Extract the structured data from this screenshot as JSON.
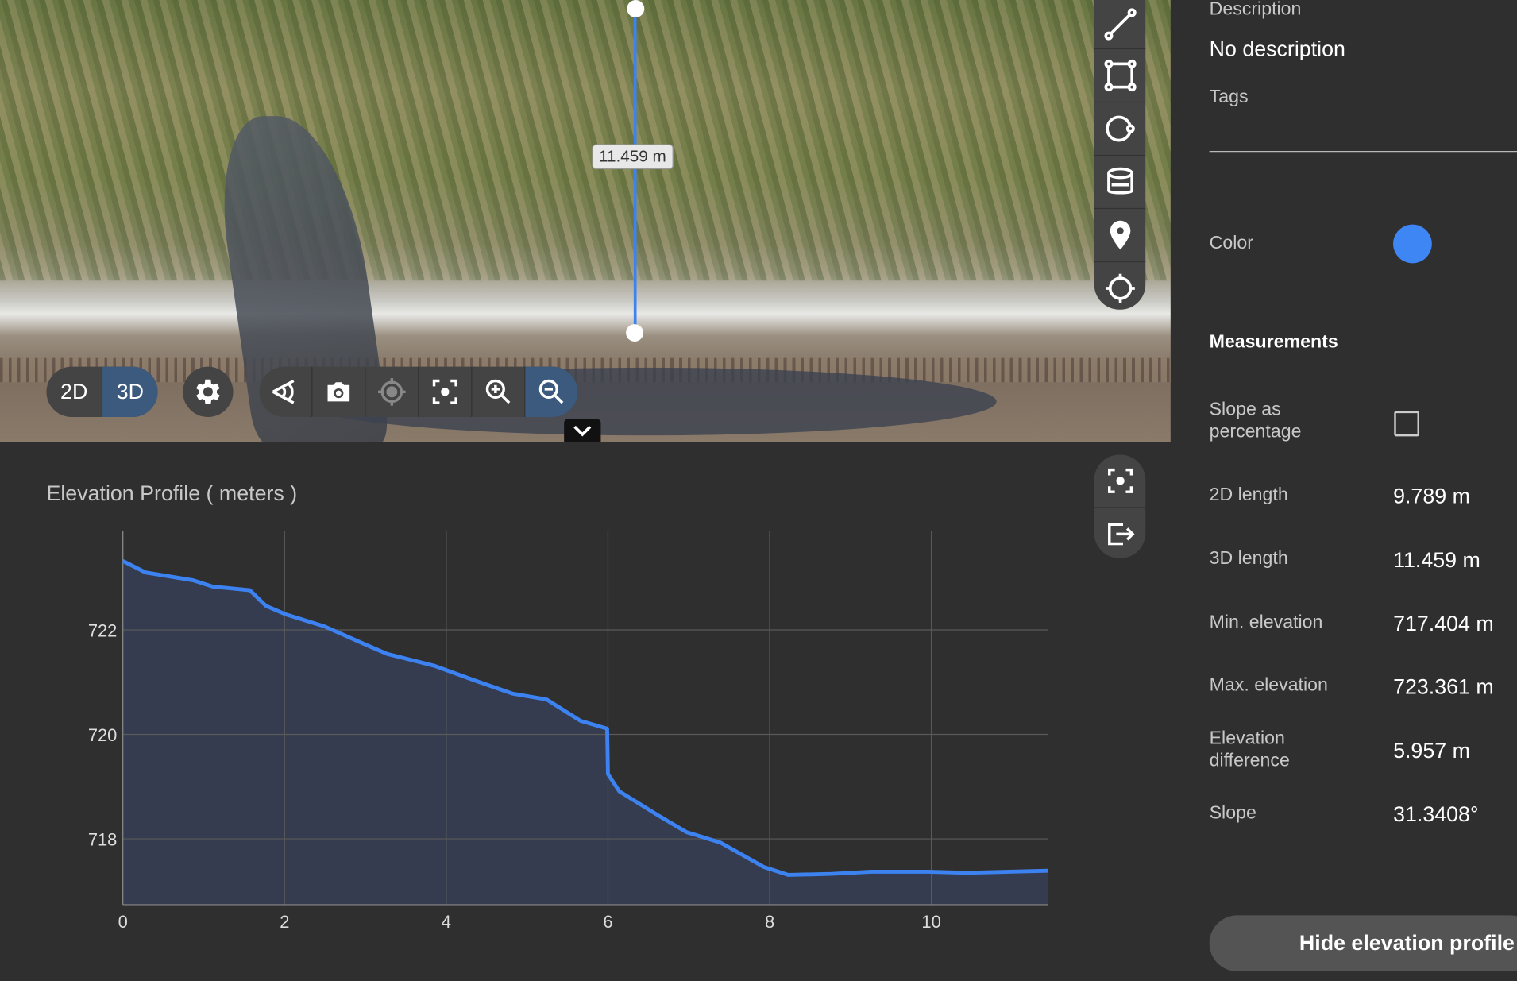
{
  "map": {
    "measure_label": "11.459 m",
    "view_toggle": [
      {
        "label": "2D",
        "active": false
      },
      {
        "label": "3D",
        "active": true
      }
    ],
    "toolbar_icons": [
      "eye-view-icon",
      "camera-icon",
      "locate-icon",
      "focus-icon",
      "zoom-in-icon",
      "zoom-out-icon"
    ],
    "tool_icons": [
      "line-icon",
      "polygon-icon",
      "circle-icon",
      "volume-icon",
      "marker-icon",
      "crosshair-icon"
    ],
    "line_color": "#3c82f0"
  },
  "panel": {
    "description_label": "Description",
    "description_value": "No description",
    "tags_label": "Tags",
    "color_label": "Color",
    "color_value": "#3f86f5",
    "measurements_heading": "Measurements",
    "slope_pct_label": "Slope as percentage",
    "slope_pct_checked": false,
    "rows": [
      {
        "label": "2D length",
        "value": "9.789 m"
      },
      {
        "label": "3D length",
        "value": "11.459 m"
      },
      {
        "label": "Min. elevation",
        "value": "717.404 m"
      },
      {
        "label": "Max. elevation",
        "value": "723.361 m"
      },
      {
        "label": "Elevation difference",
        "value": "5.957 m"
      },
      {
        "label": "Slope",
        "value": "31.3408°"
      }
    ],
    "hide_button": "Hide elevation profile"
  },
  "chart_data": {
    "type": "area",
    "title": "Elevation Profile ( meters )",
    "xlim": [
      0,
      11.44
    ],
    "ylim": [
      716.74,
      723.89
    ],
    "xticks": [
      0,
      2,
      4,
      6,
      8,
      10
    ],
    "yticks": [
      718,
      720,
      722
    ],
    "grid": true,
    "line_color": "#3c82f0",
    "fill_color": "#353c4f",
    "x": [
      0,
      0.28,
      0.87,
      1.11,
      1.57,
      1.77,
      2.01,
      2.49,
      3.03,
      3.27,
      3.86,
      4.34,
      4.82,
      5.24,
      5.66,
      5.99,
      6.0,
      6.14,
      6.61,
      6.97,
      7.39,
      7.93,
      8.23,
      8.77,
      9.25,
      9.96,
      10.44,
      11.44
    ],
    "y": [
      723.32,
      723.1,
      722.95,
      722.83,
      722.76,
      722.46,
      722.3,
      722.07,
      721.7,
      721.54,
      721.31,
      721.04,
      720.78,
      720.67,
      720.26,
      720.11,
      719.24,
      718.91,
      718.46,
      718.13,
      717.93,
      717.46,
      717.31,
      717.33,
      717.37,
      717.37,
      717.35,
      717.39
    ]
  }
}
